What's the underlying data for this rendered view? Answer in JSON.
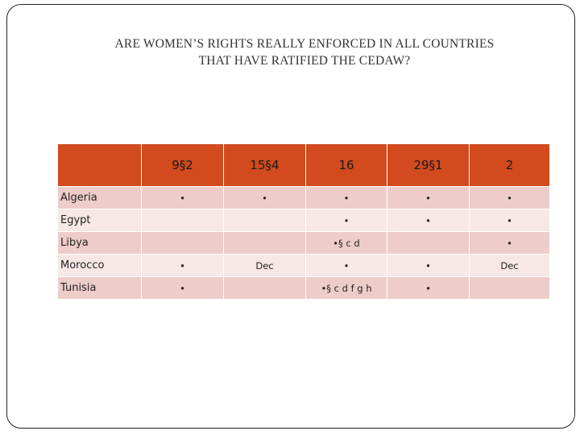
{
  "title": {
    "line1": "ARE WOMEN’S RIGHTS REALLY ENFORCED IN ALL COUNTRIES",
    "line2": "THAT HAVE RATIFIED THE CEDAW?"
  },
  "table": {
    "corner": "",
    "columns": [
      "9§2",
      "15§4",
      "16",
      "29§1",
      "2"
    ],
    "rows": [
      {
        "country": "Algeria",
        "cells": [
          "•",
          "•",
          "•",
          "•",
          "•"
        ]
      },
      {
        "country": "Egypt",
        "cells": [
          "",
          "",
          "•",
          "•",
          "•"
        ]
      },
      {
        "country": "Libya",
        "cells": [
          "",
          "",
          "•§ c d",
          "",
          "•"
        ]
      },
      {
        "country": "Morocco",
        "cells": [
          "•",
          "Dec",
          "•",
          "•",
          "Dec"
        ]
      },
      {
        "country": "Tunisia",
        "cells": [
          "•",
          "",
          "•§ c d f g h",
          "•",
          ""
        ]
      }
    ]
  },
  "colors": {
    "header_bg": "#d24a1d",
    "row_dark": "#eeccc9",
    "row_light": "#f7e7e5"
  }
}
